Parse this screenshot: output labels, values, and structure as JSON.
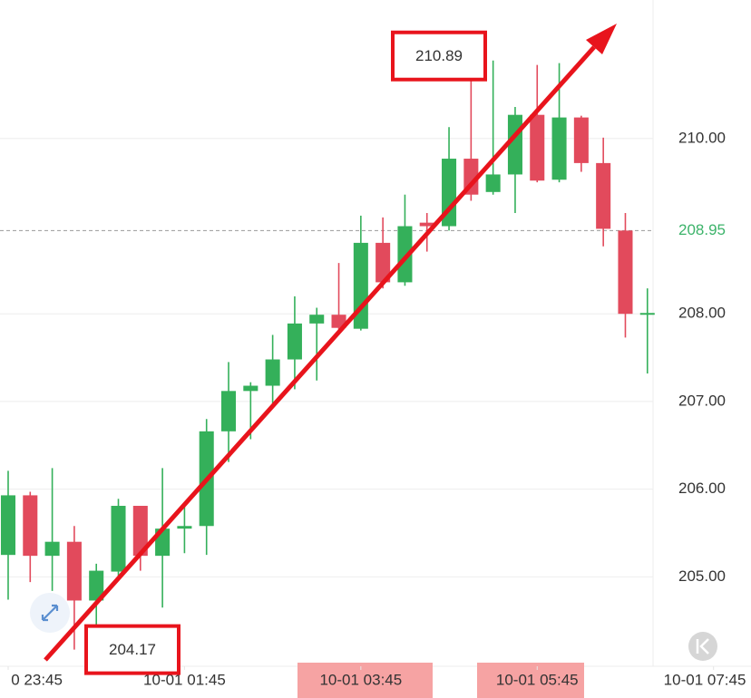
{
  "chart_data": {
    "type": "candlestick",
    "x": [
      0,
      1,
      2,
      3,
      4,
      5,
      6,
      7,
      8,
      9,
      10,
      11,
      12,
      13,
      14,
      15,
      16,
      17,
      18,
      19,
      20,
      21,
      22,
      23,
      24,
      25,
      26,
      27,
      28,
      29
    ],
    "open": [
      205.25,
      205.93,
      205.24,
      205.4,
      204.73,
      205.06,
      205.81,
      205.24,
      205.55,
      205.58,
      206.66,
      207.12,
      207.18,
      207.48,
      207.89,
      207.99,
      207.83,
      208.81,
      208.36,
      209.04,
      209.0,
      209.77,
      209.39,
      209.59,
      210.27,
      209.53,
      210.24,
      209.72,
      208.95,
      207.99
    ],
    "high": [
      206.21,
      205.97,
      206.24,
      205.58,
      205.15,
      205.89,
      205.81,
      206.24,
      205.83,
      206.8,
      207.45,
      207.22,
      207.76,
      208.2,
      208.07,
      208.58,
      209.12,
      209.1,
      209.36,
      209.15,
      210.13,
      210.73,
      210.89,
      210.36,
      210.84,
      210.86,
      210.26,
      210.01,
      209.15,
      208.29
    ],
    "low": [
      204.74,
      204.94,
      204.84,
      204.17,
      204.4,
      204.96,
      205.07,
      204.65,
      205.27,
      205.25,
      206.31,
      206.57,
      206.98,
      207.14,
      207.24,
      207.76,
      207.81,
      208.29,
      208.32,
      208.71,
      208.95,
      209.29,
      209.36,
      209.15,
      209.5,
      209.5,
      209.62,
      208.77,
      207.73,
      207.32
    ],
    "close": [
      205.93,
      205.24,
      205.4,
      204.73,
      205.07,
      205.81,
      205.24,
      205.55,
      205.58,
      206.66,
      207.12,
      207.18,
      207.48,
      207.89,
      207.99,
      207.84,
      208.81,
      208.36,
      209.0,
      209.0,
      209.77,
      209.36,
      209.59,
      210.27,
      209.52,
      210.24,
      209.72,
      208.97,
      208.0,
      208.01
    ],
    "up_color": "#34b05a",
    "down_color": "#e24a5c",
    "xlim": [
      -0.37,
      33.7
    ],
    "xticks": [
      {
        "value": 0,
        "label": "0 23:45"
      },
      {
        "value": 8,
        "label": "10-01 01:45"
      },
      {
        "value": 16,
        "label": "10-01 03:45"
      },
      {
        "value": 24,
        "label": "10-01 05:45"
      },
      {
        "value": 32,
        "label": "10-01 07:45"
      }
    ],
    "ylim": [
      203.98,
      211.58
    ],
    "yticks": [
      {
        "value": 205,
        "label": "205.00"
      },
      {
        "value": 206,
        "label": "206.00"
      },
      {
        "value": 207,
        "label": "207.00"
      },
      {
        "value": 208,
        "label": "208.00"
      },
      {
        "value": 210,
        "label": "210.00"
      }
    ],
    "grid": true,
    "price_line": {
      "value": 208.95,
      "label": "208.95",
      "color": "#3cb36a"
    },
    "annotations": [
      {
        "value": 210.89,
        "label": "210.89"
      },
      {
        "value": 204.17,
        "label": "204.17"
      }
    ]
  }
}
